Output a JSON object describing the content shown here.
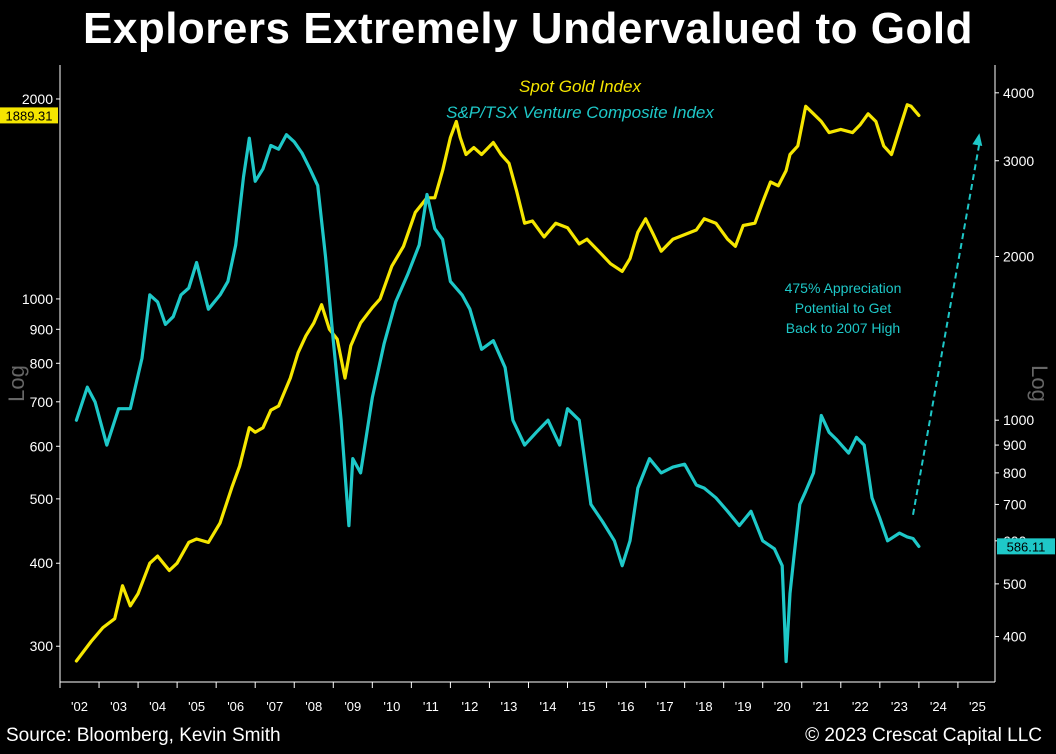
{
  "title": "Explorers Extremely Undervalued to Gold",
  "source": "Source: Bloomberg, Kevin Smith",
  "copyright": "© 2023 Crescat Capital LLC",
  "colors": {
    "gold": "#f5e600",
    "venture": "#1ec8c8",
    "background": "#000000",
    "axis": "#ffffff",
    "annotation": "#1ec8c8"
  },
  "chart_data": {
    "type": "line",
    "legend": [
      "Spot Gold Index",
      "S&P/TSX Venture Composite Index"
    ],
    "annotation": [
      "475% Appreciation",
      "Potential to Get",
      "Back to 2007 High"
    ],
    "x_ticks": [
      "'02",
      "'03",
      "'04",
      "'05",
      "'06",
      "'07",
      "'08",
      "'09",
      "'10",
      "'11",
      "'12",
      "'13",
      "'14",
      "'15",
      "'16",
      "'17",
      "'18",
      "'19",
      "'20",
      "'21",
      "'22",
      "'23",
      "'24",
      "'25"
    ],
    "left_axis": {
      "label": "Log",
      "scale": "log",
      "ylim": [
        265,
        2250
      ],
      "ticks": [
        300,
        400,
        500,
        600,
        700,
        800,
        900,
        1000,
        2000
      ],
      "last_value_label": "1889.31"
    },
    "right_axis": {
      "label": "Log",
      "scale": "log",
      "ylim": [
        330,
        4500
      ],
      "ticks": [
        400,
        500,
        600,
        700,
        800,
        900,
        1000,
        2000,
        3000,
        4000
      ],
      "last_value_label": "586.11"
    },
    "series": [
      {
        "name": "Spot Gold Index",
        "axis": "left",
        "x": [
          2001.92,
          2002.3,
          2002.6,
          2002.9,
          2003.1,
          2003.3,
          2003.5,
          2003.8,
          2004.0,
          2004.3,
          2004.5,
          2004.8,
          2005.0,
          2005.3,
          2005.6,
          2005.9,
          2006.1,
          2006.35,
          2006.5,
          2006.7,
          2006.9,
          2007.1,
          2007.4,
          2007.6,
          2007.8,
          2008.0,
          2008.2,
          2008.4,
          2008.6,
          2008.8,
          2008.95,
          2009.2,
          2009.5,
          2009.7,
          2010.0,
          2010.3,
          2010.6,
          2010.9,
          2011.1,
          2011.3,
          2011.5,
          2011.65,
          2011.75,
          2011.9,
          2012.1,
          2012.3,
          2012.6,
          2012.8,
          2013.0,
          2013.2,
          2013.4,
          2013.6,
          2013.9,
          2014.2,
          2014.5,
          2014.8,
          2015.0,
          2015.3,
          2015.6,
          2015.9,
          2016.1,
          2016.3,
          2016.5,
          2016.7,
          2016.9,
          2017.2,
          2017.5,
          2017.8,
          2018.0,
          2018.3,
          2018.6,
          2018.8,
          2019.0,
          2019.3,
          2019.5,
          2019.7,
          2019.9,
          2020.1,
          2020.2,
          2020.4,
          2020.6,
          2020.8,
          2021.0,
          2021.2,
          2021.5,
          2021.8,
          2022.0,
          2022.2,
          2022.4,
          2022.6,
          2022.8,
          2023.0,
          2023.2,
          2023.3,
          2023.5
        ],
        "values": [
          285,
          305,
          320,
          330,
          370,
          345,
          360,
          400,
          410,
          390,
          400,
          430,
          435,
          430,
          460,
          520,
          560,
          640,
          630,
          640,
          680,
          690,
          760,
          830,
          880,
          920,
          980,
          900,
          870,
          760,
          850,
          920,
          970,
          1000,
          1120,
          1200,
          1350,
          1420,
          1420,
          1560,
          1750,
          1850,
          1750,
          1650,
          1690,
          1650,
          1720,
          1650,
          1600,
          1450,
          1300,
          1310,
          1240,
          1300,
          1280,
          1210,
          1230,
          1180,
          1130,
          1100,
          1150,
          1260,
          1320,
          1250,
          1180,
          1230,
          1250,
          1270,
          1320,
          1300,
          1230,
          1200,
          1290,
          1300,
          1400,
          1500,
          1480,
          1560,
          1650,
          1700,
          1950,
          1900,
          1850,
          1780,
          1800,
          1780,
          1830,
          1900,
          1850,
          1700,
          1650,
          1800,
          1960,
          1950,
          1889.31
        ]
      },
      {
        "name": "S&P/TSX Venture Composite Index",
        "axis": "right",
        "x": [
          2001.92,
          2002.2,
          2002.4,
          2002.7,
          2003.0,
          2003.3,
          2003.6,
          2003.8,
          2004.0,
          2004.2,
          2004.4,
          2004.6,
          2004.8,
          2005.0,
          2005.3,
          2005.6,
          2005.8,
          2006.0,
          2006.2,
          2006.35,
          2006.5,
          2006.7,
          2006.9,
          2007.1,
          2007.3,
          2007.5,
          2007.7,
          2007.9,
          2008.1,
          2008.3,
          2008.5,
          2008.7,
          2008.9,
          2009.0,
          2009.2,
          2009.5,
          2009.8,
          2010.1,
          2010.4,
          2010.7,
          2010.9,
          2011.1,
          2011.3,
          2011.5,
          2011.8,
          2012.0,
          2012.3,
          2012.6,
          2012.9,
          2013.1,
          2013.4,
          2013.7,
          2014.0,
          2014.3,
          2014.5,
          2014.8,
          2015.1,
          2015.4,
          2015.7,
          2015.9,
          2016.1,
          2016.3,
          2016.6,
          2016.9,
          2017.2,
          2017.5,
          2017.8,
          2018.0,
          2018.3,
          2018.6,
          2018.9,
          2019.2,
          2019.5,
          2019.8,
          2020.0,
          2020.1,
          2020.2,
          2020.3,
          2020.45,
          2020.6,
          2020.8,
          2021.0,
          2021.2,
          2021.4,
          2021.7,
          2021.9,
          2022.1,
          2022.3,
          2022.5,
          2022.7,
          2023.0,
          2023.2,
          2023.35,
          2023.5
        ],
        "values": [
          1000,
          1150,
          1080,
          900,
          1050,
          1050,
          1300,
          1700,
          1650,
          1500,
          1550,
          1700,
          1750,
          1950,
          1600,
          1700,
          1800,
          2100,
          2800,
          3300,
          2750,
          2900,
          3200,
          3150,
          3350,
          3250,
          3100,
          2900,
          2700,
          2000,
          1400,
          1000,
          640,
          850,
          800,
          1100,
          1380,
          1650,
          1850,
          2100,
          2600,
          2250,
          2150,
          1800,
          1700,
          1600,
          1350,
          1400,
          1250,
          1000,
          900,
          950,
          1000,
          900,
          1050,
          1000,
          700,
          650,
          600,
          540,
          600,
          750,
          850,
          800,
          820,
          830,
          760,
          750,
          720,
          680,
          640,
          680,
          600,
          580,
          540,
          360,
          480,
          560,
          700,
          740,
          800,
          1020,
          950,
          920,
          870,
          930,
          900,
          720,
          660,
          600,
          620,
          610,
          606,
          586.11
        ]
      }
    ],
    "projection": {
      "from": {
        "x": 2023.35,
        "y": 670
      },
      "to": {
        "x": 2025.05,
        "y": 3370
      }
    }
  }
}
